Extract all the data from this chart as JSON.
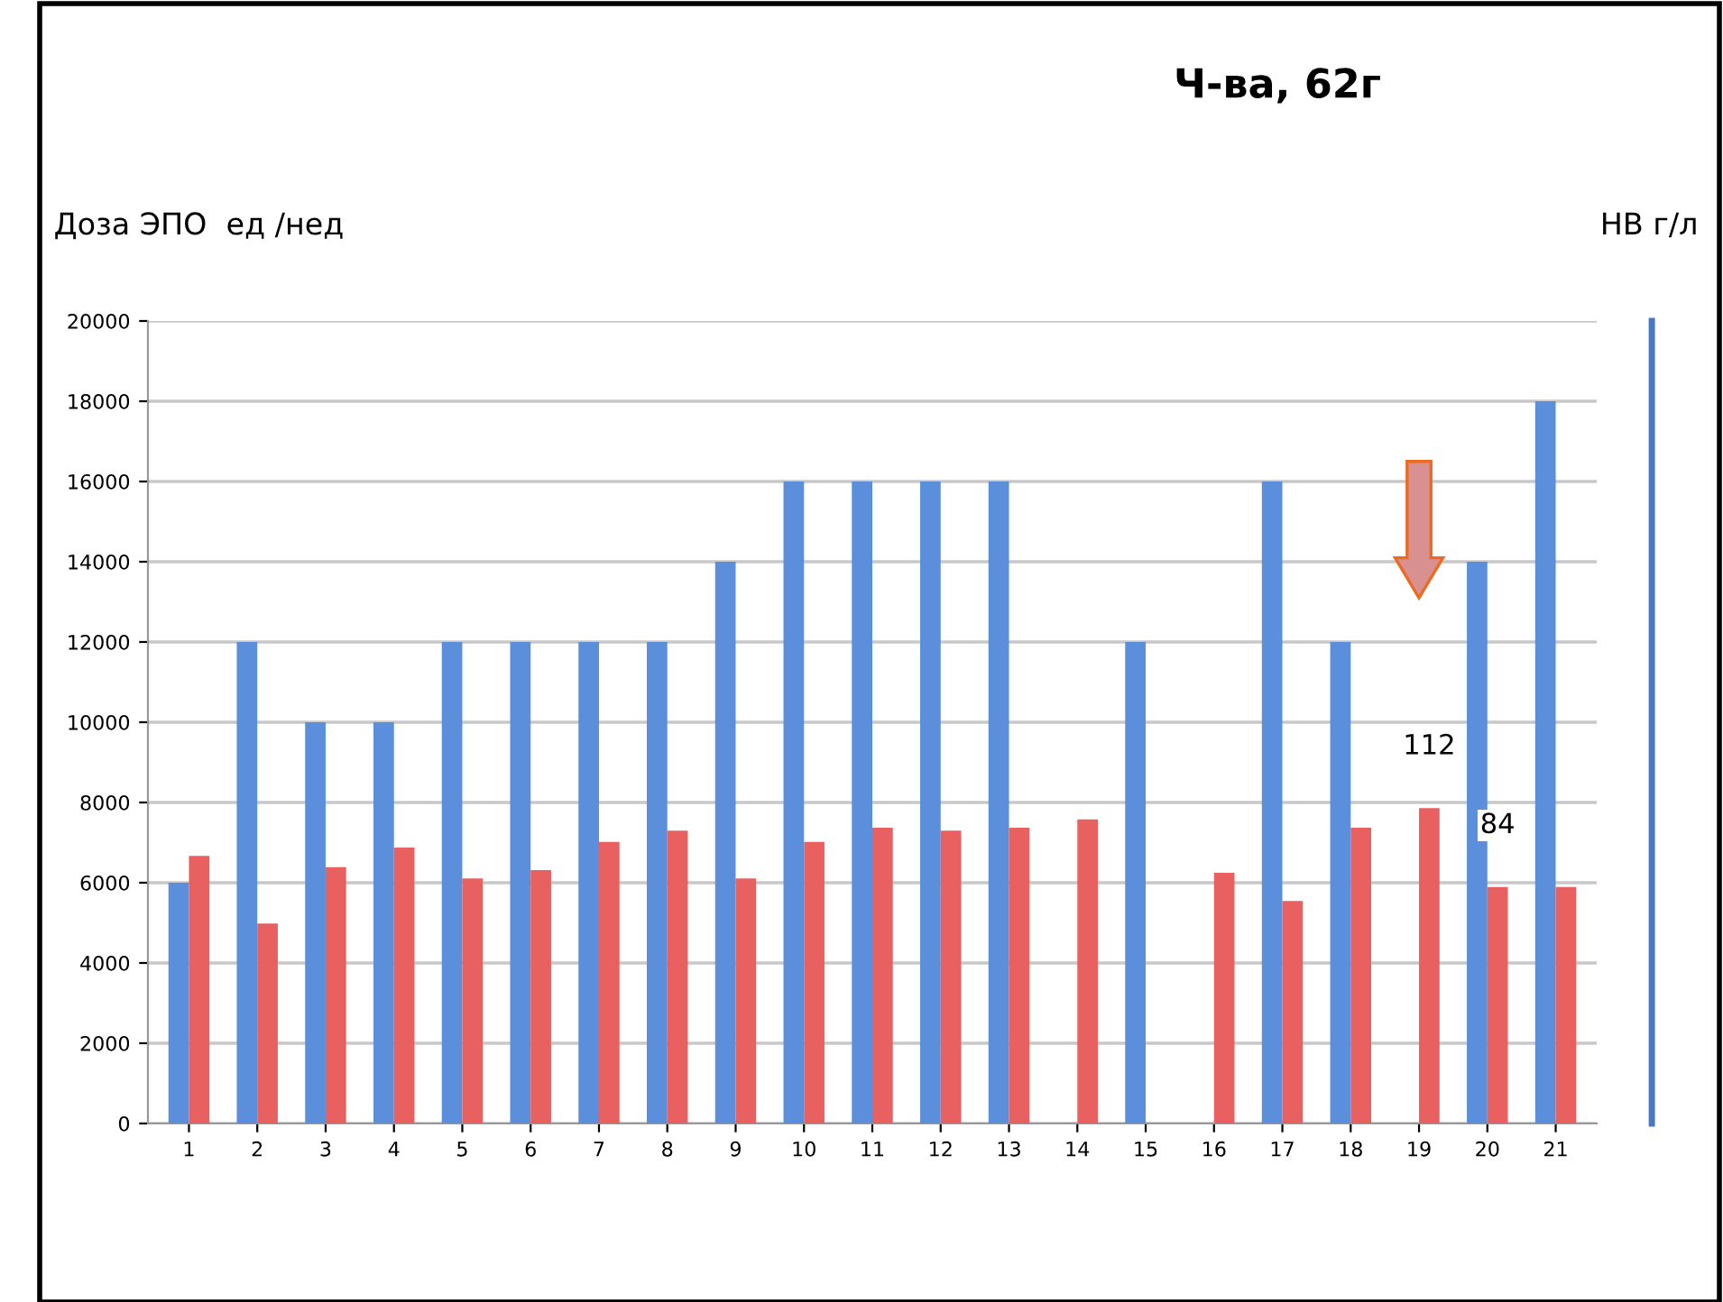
{
  "chart_data": {
    "type": "bar",
    "title": "Ч-ва, 62г",
    "ylabel": "Доза ЭПО  ед /нед",
    "y2label": "НВ г/л",
    "categories": [
      "1",
      "2",
      "3",
      "4",
      "5",
      "6",
      "7",
      "8",
      "9",
      "10",
      "11",
      "12",
      "13",
      "14",
      "15",
      "16",
      "17",
      "18",
      "19",
      "20",
      "21"
    ],
    "series": [
      {
        "color": "#5b8fdb",
        "values": [
          6000,
          12000,
          10000,
          10000,
          12000,
          12000,
          12000,
          12000,
          14000,
          16000,
          16000,
          16000,
          16000,
          0,
          12000,
          0,
          16000,
          12000,
          0,
          14000,
          18000
        ]
      },
      {
        "color": "#e86060",
        "axis": "y2",
        "values": [
          95,
          71,
          91,
          98,
          87,
          90,
          100,
          104,
          87,
          100,
          105,
          104,
          105,
          108,
          null,
          89,
          79,
          105,
          112,
          84,
          84
        ],
        "value_labels": [
          null,
          null,
          null,
          null,
          null,
          null,
          null,
          null,
          null,
          null,
          null,
          null,
          null,
          null,
          null,
          null,
          null,
          null,
          "112",
          "84",
          null
        ]
      }
    ],
    "ylim": [
      0,
      20000
    ],
    "yticks": [
      0,
      2000,
      4000,
      6000,
      8000,
      10000,
      12000,
      14000,
      16000,
      18000,
      20000
    ],
    "y2lim": [
      0,
      285
    ],
    "grid": "y",
    "legend": false
  }
}
